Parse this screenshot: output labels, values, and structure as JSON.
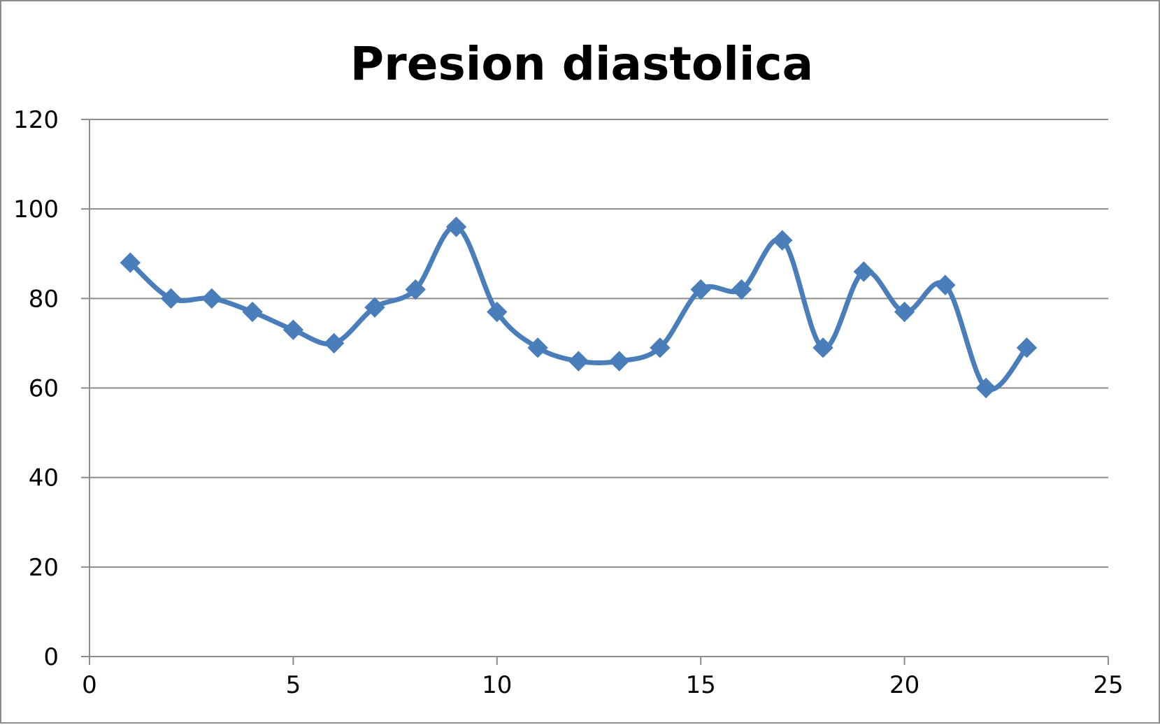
{
  "chart_data": {
    "type": "scatter",
    "title": "Presion diastolica",
    "xlabel": "",
    "ylabel": "",
    "xlim": [
      0,
      25
    ],
    "ylim": [
      0,
      120
    ],
    "xticks": [
      0,
      5,
      10,
      15,
      20,
      25
    ],
    "yticks": [
      0,
      20,
      40,
      60,
      80,
      100,
      120
    ],
    "grid": "horizontal",
    "legend": "none",
    "line_style": "smooth",
    "marker": "diamond",
    "series_color": "#4a7ebb",
    "series": [
      {
        "x": [
          1,
          2,
          3,
          4,
          5,
          6,
          7,
          8,
          9,
          10,
          11,
          12,
          13,
          14,
          15,
          16,
          17,
          18,
          19,
          20,
          21,
          22,
          23
        ],
        "y": [
          88,
          80,
          80,
          77,
          73,
          70,
          78,
          82,
          96,
          77,
          69,
          66,
          66,
          69,
          82,
          82,
          93,
          69,
          86,
          77,
          83,
          60,
          69
        ]
      }
    ]
  }
}
